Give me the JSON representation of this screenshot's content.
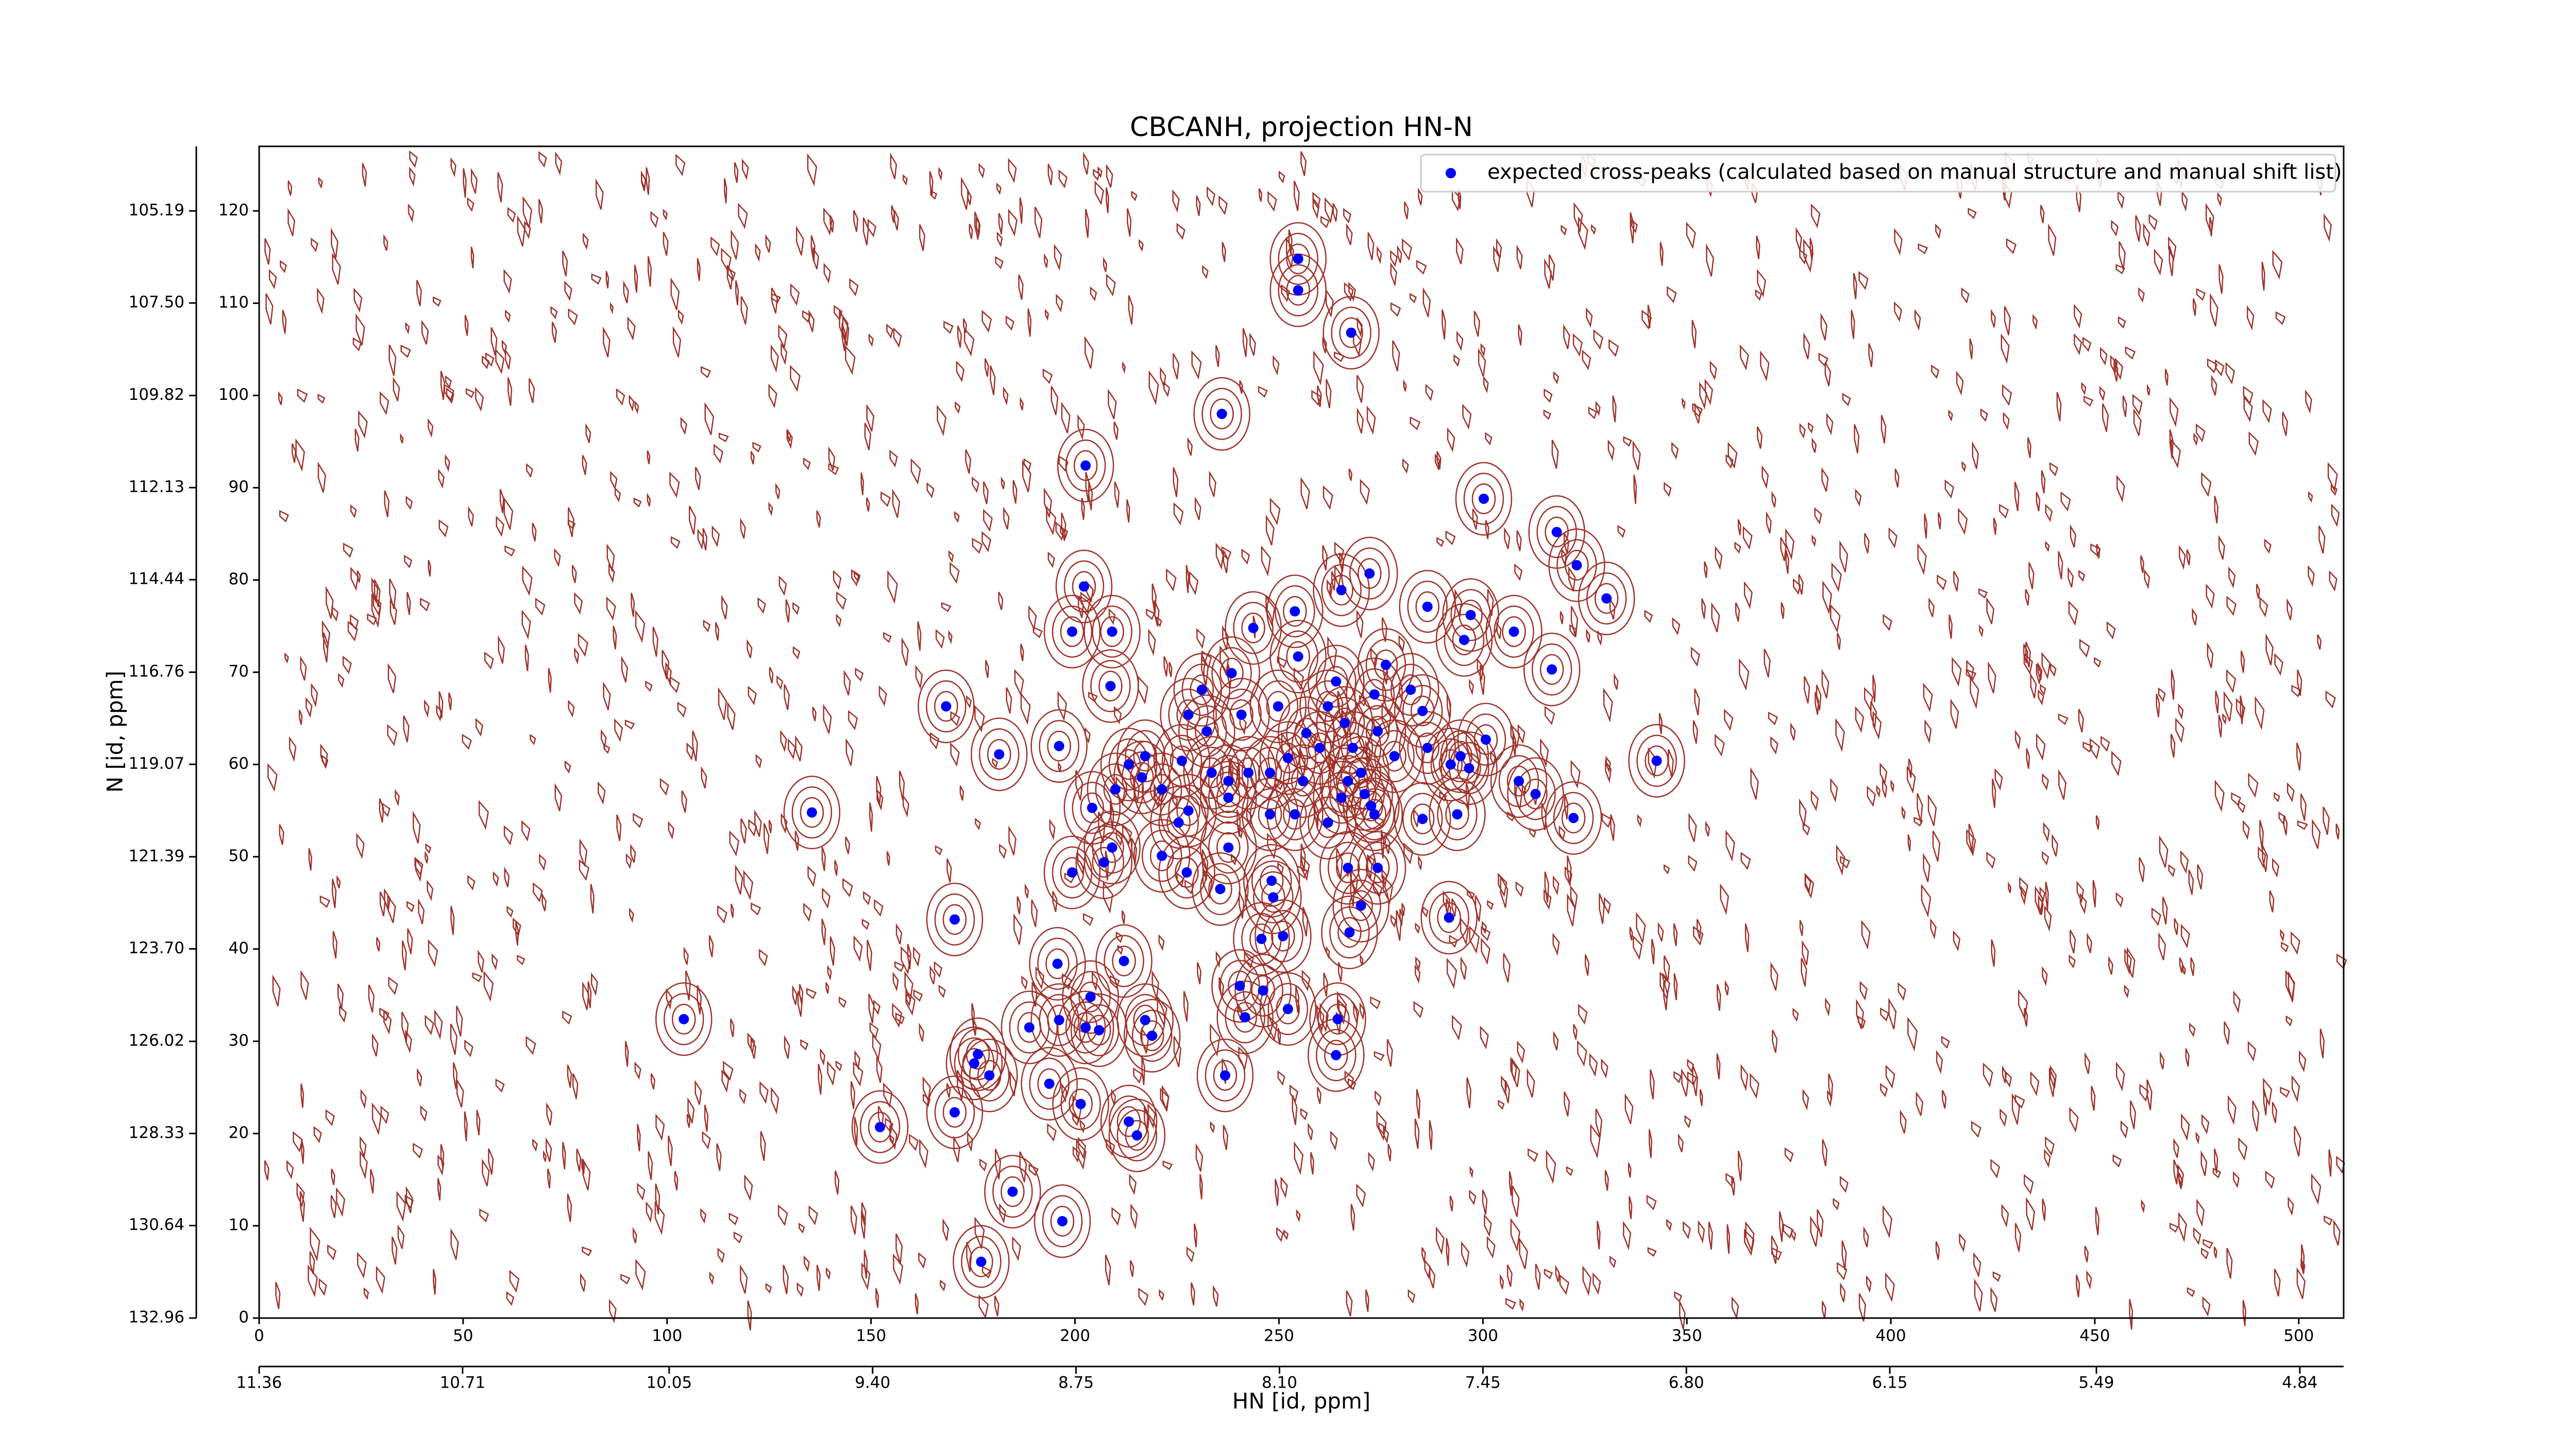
{
  "chart_data": {
    "type": "scatter",
    "title": "CBCANH, projection HN-N",
    "xlabel": "HN [id, ppm]",
    "ylabel": "N [id, ppm]",
    "xlim": [
      0,
      511
    ],
    "ylim": [
      0,
      127
    ],
    "xticks": [
      0,
      50,
      100,
      150,
      200,
      250,
      300,
      350,
      400,
      450,
      500
    ],
    "yticks": [
      0,
      10,
      20,
      30,
      40,
      50,
      60,
      70,
      80,
      90,
      100,
      110,
      120
    ],
    "x2lim": [
      11.36,
      4.7
    ],
    "x2ticks": [
      11.36,
      10.71,
      10.05,
      {
        "value": 9.4,
        "label": "9.40"
      },
      8.75,
      {
        "value": 8.1,
        "label": "8.10"
      },
      7.45,
      {
        "value": 6.8,
        "label": "6.80"
      },
      6.15,
      5.49,
      4.84
    ],
    "y2lim": [
      132.96,
      103.57
    ],
    "y2ticks": [
      132.96,
      130.64,
      128.33,
      126.02,
      {
        "value": 123.7,
        "label": "123.70"
      },
      121.39,
      119.07,
      116.76,
      114.44,
      112.13,
      109.82,
      {
        "value": 107.5,
        "label": "107.50"
      },
      105.19
    ],
    "legend": "upper right",
    "series": [
      {
        "name": "expected cross-peaks (calculated based on manual structure and manual shift list)",
        "color": "#0000ff",
        "x": [
          254.7,
          254.7,
          267.7,
          236.0,
          202.6,
          300.2,
          318.1,
          323.0,
          330.3,
          202.2,
          199.3,
          209.1,
          265.3,
          272.2,
          253.9,
          243.7,
          286.4,
          297.0,
          307.6,
          295.4,
          316.9,
          208.7,
          168.4,
          181.4,
          196.1,
          238.4,
          231.1,
          254.7,
          264.0,
          262.0,
          276.2,
          273.4,
          282.3,
          285.2,
          249.8,
          240.8,
          227.8,
          232.3,
          217.2,
          226.2,
          213.2,
          233.5,
          242.5,
          247.8,
          260.0,
          268.1,
          274.2,
          286.4,
          294.5,
          300.7,
          292.1,
          296.6,
          308.8,
          312.9,
          322.2,
          342.6,
          266.1,
          256.7,
          252.2,
          270.1,
          278.3,
          255.9,
          265.3,
          272.6,
          262.0,
          247.8,
          253.9,
          237.6,
          227.8,
          225.4,
          204.2,
          209.9,
          216.4,
          237.6,
          221.3,
          266.9,
          271.0,
          293.7,
          285.2,
          273.4,
          209.1,
          221.3,
          237.6,
          207.1,
          199.3,
          227.4,
          235.6,
          248.2,
          248.6,
          266.9,
          274.2,
          270.1,
          267.3,
          291.7,
          170.5,
          195.7,
          212.0,
          245.7,
          251.0,
          240.4,
          246.1,
          203.8,
          196.1,
          188.8,
          202.6,
          205.9,
          217.2,
          218.9,
          241.7,
          252.2,
          264.4,
          264.0,
          176.2,
          175.3,
          179.0,
          193.7,
          201.4,
          236.8,
          170.5,
          152.2,
          213.2,
          215.2,
          184.7,
          196.9,
          177.0,
          104.1,
          135.5
        ],
        "values": [
          114.8,
          111.4,
          106.8,
          98.0,
          92.4,
          88.8,
          85.2,
          81.6,
          78.0,
          79.3,
          74.4,
          74.4,
          78.9,
          80.7,
          76.6,
          74.8,
          77.1,
          76.2,
          74.4,
          73.5,
          70.3,
          68.5,
          66.3,
          61.1,
          62.0,
          69.9,
          68.1,
          71.7,
          69.0,
          66.3,
          70.8,
          67.6,
          68.1,
          65.8,
          66.3,
          65.4,
          65.4,
          63.6,
          60.9,
          60.4,
          60.0,
          59.1,
          59.1,
          59.1,
          61.8,
          61.8,
          63.6,
          61.8,
          60.9,
          62.7,
          60.0,
          59.6,
          58.2,
          56.8,
          54.2,
          60.4,
          64.5,
          63.4,
          60.7,
          59.1,
          60.9,
          58.2,
          56.4,
          55.5,
          53.7,
          54.6,
          54.6,
          56.4,
          55.0,
          53.7,
          55.3,
          57.3,
          58.6,
          58.2,
          57.3,
          58.2,
          56.8,
          54.6,
          54.1,
          54.6,
          51.0,
          50.1,
          51.0,
          49.4,
          48.3,
          48.3,
          46.5,
          47.4,
          45.6,
          48.8,
          48.8,
          44.7,
          41.8,
          43.4,
          43.2,
          38.4,
          38.7,
          41.1,
          41.4,
          36.0,
          35.5,
          34.8,
          32.3,
          31.5,
          31.5,
          31.2,
          32.3,
          30.6,
          32.6,
          33.5,
          32.4,
          28.5,
          28.6,
          27.6,
          26.3,
          25.4,
          23.2,
          26.3,
          22.3,
          20.7,
          21.3,
          19.8,
          13.7,
          10.5,
          6.1,
          32.4,
          54.8
        ]
      }
    ]
  }
}
